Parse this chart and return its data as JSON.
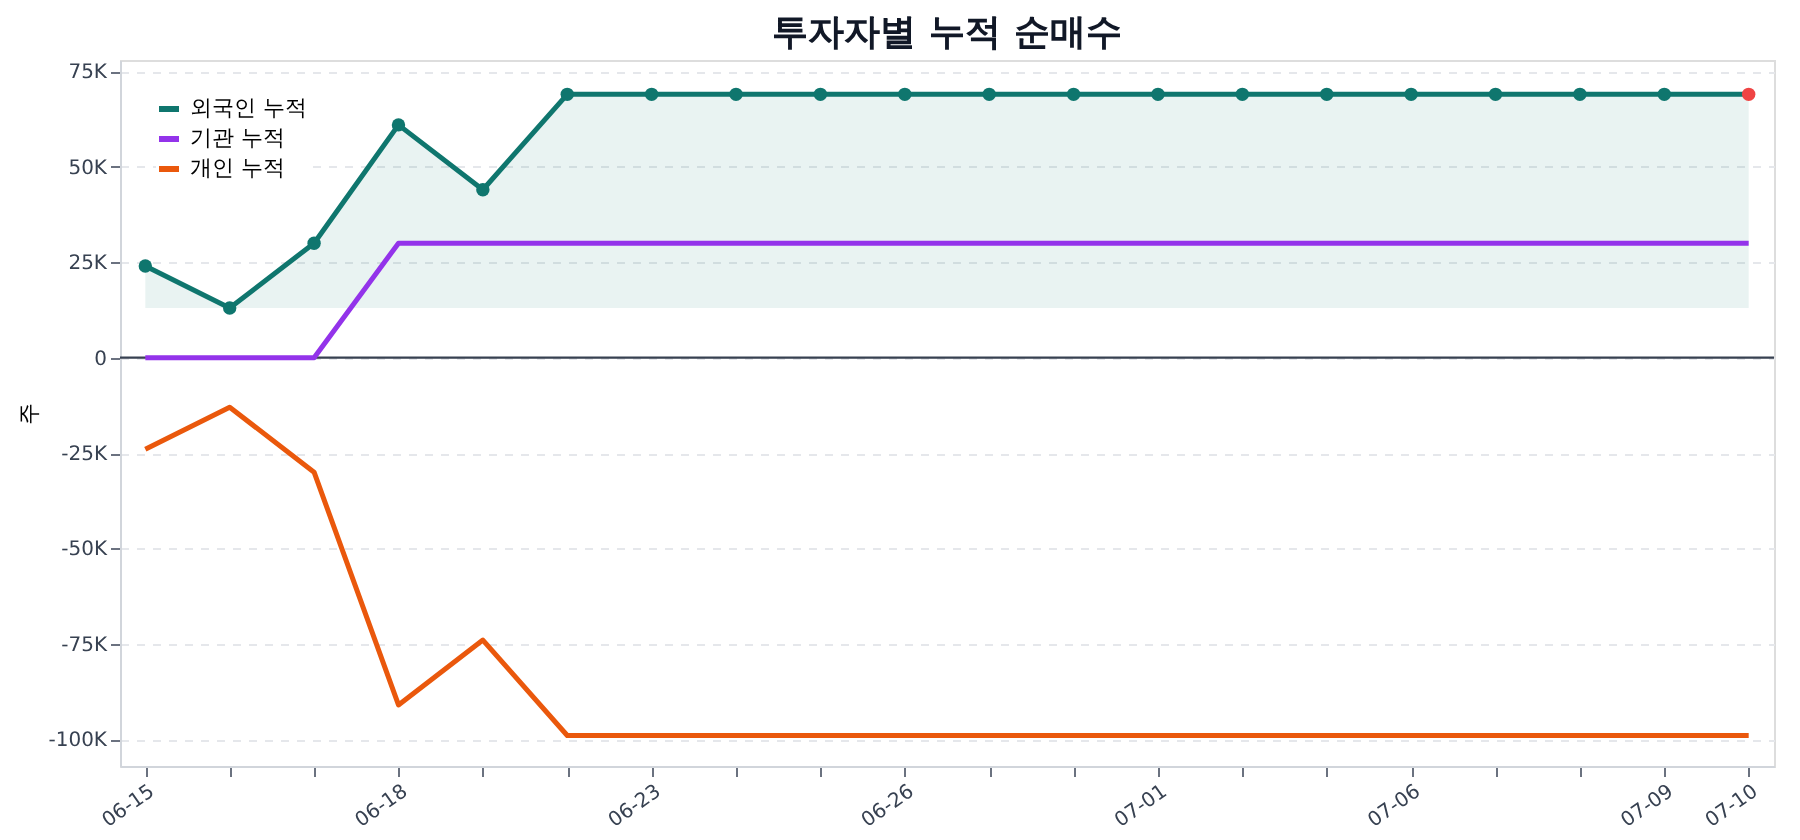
{
  "chart_data": {
    "type": "line",
    "title": "투자자별 누적 순매수",
    "ylabel": "주",
    "categories": [
      "06-15",
      null,
      null,
      "06-18",
      null,
      null,
      "06-23",
      null,
      null,
      "06-26",
      null,
      null,
      "07-01",
      null,
      null,
      "07-06",
      null,
      null,
      "07-09",
      "07-10"
    ],
    "series": [
      {
        "name": "외국인 누적",
        "color": "#0f766e",
        "marker": "circle",
        "colors": [
          "#0f766e",
          "#0f766e",
          "#0f766e",
          "#0f766e",
          "#0f766e",
          "#0f766e",
          "#0f766e",
          "#0f766e",
          "#0f766e",
          "#0f766e",
          "#0f766e",
          "#0f766e",
          "#0f766e",
          "#0f766e",
          "#0f766e",
          "#0f766e",
          "#0f766e",
          "#0f766e",
          "#0f766e",
          "#ef4444"
        ],
        "values": [
          24000,
          13000,
          30000,
          61000,
          44000,
          69000,
          69000,
          69000,
          69000,
          69000,
          69000,
          69000,
          69000,
          69000,
          69000,
          69000,
          69000,
          69000,
          69000,
          69000
        ],
        "lower": [
          13000,
          13000,
          13000,
          13000,
          13000,
          13000,
          13000,
          13000,
          13000,
          13000,
          13000,
          13000,
          13000,
          13000,
          13000,
          13000,
          13000,
          13000,
          13000,
          13000
        ],
        "upper": [
          24000,
          13000,
          30000,
          61000,
          44000,
          69000,
          69000,
          69000,
          69000,
          69000,
          69000,
          69000,
          69000,
          69000,
          69000,
          69000,
          69000,
          69000,
          69000,
          69000
        ]
      },
      {
        "name": "기관 누적",
        "color": "#9333ea",
        "marker": "none",
        "values": [
          0,
          0,
          0,
          30000,
          30000,
          30000,
          30000,
          30000,
          30000,
          30000,
          30000,
          30000,
          30000,
          30000,
          30000,
          30000,
          30000,
          30000,
          30000,
          30000
        ]
      },
      {
        "name": "개인 누적",
        "color": "#ea580c",
        "marker": "none",
        "values": [
          -24000,
          -13000,
          -30000,
          -91000,
          -74000,
          -99000,
          -99000,
          -99000,
          -99000,
          -99000,
          -99000,
          -99000,
          -99000,
          -99000,
          -99000,
          -99000,
          -99000,
          -99000,
          -99000,
          -99000
        ]
      }
    ],
    "ylim": [
      -107000,
      78000
    ],
    "yticks": [
      {
        "value": -100000,
        "label": "-100K"
      },
      {
        "value": -75000,
        "label": "-75K"
      },
      {
        "value": -50000,
        "label": "-50K"
      },
      {
        "value": -25000,
        "label": "-25K"
      },
      0,
      {
        "value": 25000,
        "label": "25K"
      },
      {
        "value": 50000,
        "label": "50K"
      },
      {
        "value": 75000,
        "label": "75K"
      }
    ],
    "ref_lines": [
      {
        "axis": "y",
        "value": 0,
        "color": "#374151"
      }
    ],
    "grid": "y",
    "legend": "top left",
    "line_style": "solid"
  }
}
